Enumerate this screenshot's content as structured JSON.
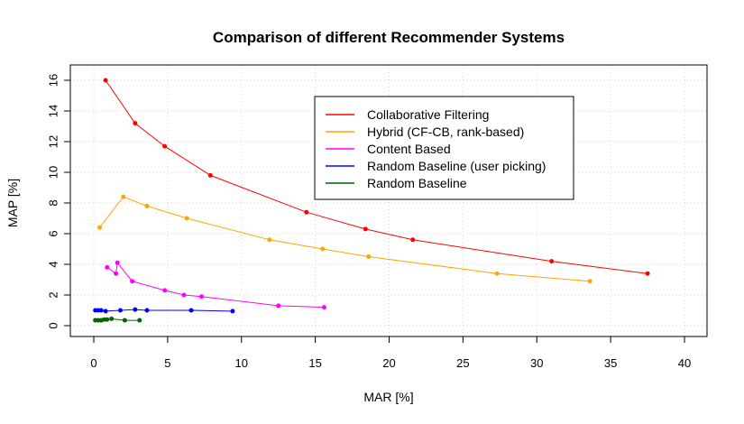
{
  "chart_data": {
    "type": "line",
    "title": "Comparison of different Recommender Systems",
    "xlabel": "MAR [%]",
    "ylabel": "MAP [%]",
    "xlim": [
      0,
      40
    ],
    "ylim": [
      0,
      16
    ],
    "xticks": [
      0,
      5,
      10,
      15,
      20,
      25,
      30,
      35,
      40
    ],
    "yticks": [
      0,
      2,
      4,
      6,
      8,
      10,
      12,
      14,
      16
    ],
    "grid": true,
    "legend_position": "top-right",
    "series": [
      {
        "name": "Collaborative Filtering",
        "color": "#ff0000",
        "points": [
          [
            0.8,
            16.0
          ],
          [
            2.8,
            13.2
          ],
          [
            4.8,
            11.7
          ],
          [
            7.9,
            9.8
          ],
          [
            14.4,
            7.4
          ],
          [
            18.4,
            6.3
          ],
          [
            21.6,
            5.6
          ],
          [
            31.0,
            4.2
          ],
          [
            37.5,
            3.4
          ]
        ]
      },
      {
        "name": "Hybrid (CF-CB, rank-based)",
        "color": "#ffa500",
        "points": [
          [
            0.4,
            6.4
          ],
          [
            2.0,
            8.4
          ],
          [
            3.6,
            7.8
          ],
          [
            6.3,
            7.0
          ],
          [
            11.9,
            5.6
          ],
          [
            15.5,
            5.0
          ],
          [
            18.6,
            4.5
          ],
          [
            27.3,
            3.4
          ],
          [
            33.6,
            2.9
          ]
        ]
      },
      {
        "name": "Content Based",
        "color": "#ff00ff",
        "points": [
          [
            0.9,
            3.8
          ],
          [
            1.5,
            3.4
          ],
          [
            1.6,
            4.1
          ],
          [
            2.6,
            2.9
          ],
          [
            4.8,
            2.3
          ],
          [
            6.1,
            2.0
          ],
          [
            7.3,
            1.9
          ],
          [
            12.5,
            1.3
          ],
          [
            15.6,
            1.2
          ]
        ]
      },
      {
        "name": "Random Baseline (user picking)",
        "color": "#0000ff",
        "points": [
          [
            0.1,
            1.0
          ],
          [
            0.3,
            1.0
          ],
          [
            0.5,
            1.0
          ],
          [
            0.8,
            0.95
          ],
          [
            1.8,
            1.0
          ],
          [
            2.8,
            1.05
          ],
          [
            3.6,
            1.0
          ],
          [
            6.6,
            1.0
          ],
          [
            9.4,
            0.95
          ]
        ]
      },
      {
        "name": "Random Baseline",
        "color": "#006400",
        "points": [
          [
            0.1,
            0.35
          ],
          [
            0.3,
            0.35
          ],
          [
            0.5,
            0.35
          ],
          [
            0.7,
            0.4
          ],
          [
            0.9,
            0.4
          ],
          [
            1.2,
            0.45
          ],
          [
            2.1,
            0.35
          ],
          [
            3.1,
            0.35
          ]
        ]
      }
    ]
  }
}
